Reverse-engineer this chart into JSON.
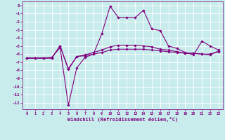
{
  "xlabel": "Windchill (Refroidissement éolien,°C)",
  "bg_color": "#c8ecec",
  "line_color": "#800080",
  "grid_color": "#ffffff",
  "xlim": [
    -0.5,
    23.5
  ],
  "ylim": [
    -12.8,
    0.5
  ],
  "yticks": [
    0,
    -1,
    -2,
    -3,
    -4,
    -5,
    -6,
    -7,
    -8,
    -9,
    -10,
    -11,
    -12
  ],
  "xticks": [
    0,
    1,
    2,
    3,
    4,
    5,
    6,
    7,
    8,
    9,
    10,
    11,
    12,
    13,
    14,
    15,
    16,
    17,
    18,
    19,
    20,
    21,
    22,
    23
  ],
  "series": [
    {
      "x": [
        0,
        1,
        2,
        3,
        4,
        5,
        6,
        7,
        8,
        9,
        10,
        11,
        12,
        13,
        14,
        15,
        16,
        17,
        18,
        19,
        20,
        21,
        22,
        23
      ],
      "y": [
        -6.5,
        -6.5,
        -6.5,
        -6.5,
        -5.0,
        -7.8,
        -6.3,
        -6.2,
        -6.0,
        -5.8,
        -5.5,
        -5.4,
        -5.4,
        -5.4,
        -5.4,
        -5.5,
        -5.6,
        -5.7,
        -5.8,
        -5.9,
        -5.9,
        -6.0,
        -6.0,
        -5.7
      ]
    },
    {
      "x": [
        0,
        1,
        2,
        3,
        4,
        5,
        6,
        7,
        8,
        9,
        10,
        11,
        12,
        13,
        14,
        15,
        16,
        17,
        18,
        19,
        20,
        21,
        22,
        23
      ],
      "y": [
        -6.5,
        -6.5,
        -6.5,
        -6.5,
        -5.0,
        -7.9,
        -6.3,
        -6.1,
        -5.8,
        -5.5,
        -5.1,
        -4.9,
        -4.9,
        -4.9,
        -5.0,
        -5.1,
        -5.4,
        -5.5,
        -5.7,
        -5.9,
        -5.9,
        -6.0,
        -6.1,
        -5.6
      ]
    },
    {
      "x": [
        0,
        1,
        2,
        3,
        4,
        5,
        6,
        7,
        8,
        9,
        10,
        11,
        12,
        13,
        14,
        15,
        16,
        17,
        18,
        19,
        20,
        21,
        22,
        23
      ],
      "y": [
        -6.5,
        -6.5,
        -6.5,
        -6.4,
        -5.2,
        -12.3,
        -7.7,
        -6.4,
        -6.0,
        -3.5,
        -0.1,
        -1.5,
        -1.5,
        -1.5,
        -0.6,
        -2.9,
        -3.1,
        -5.0,
        -5.3,
        -5.8,
        -6.1,
        -4.4,
        -5.0,
        -5.5
      ]
    }
  ]
}
